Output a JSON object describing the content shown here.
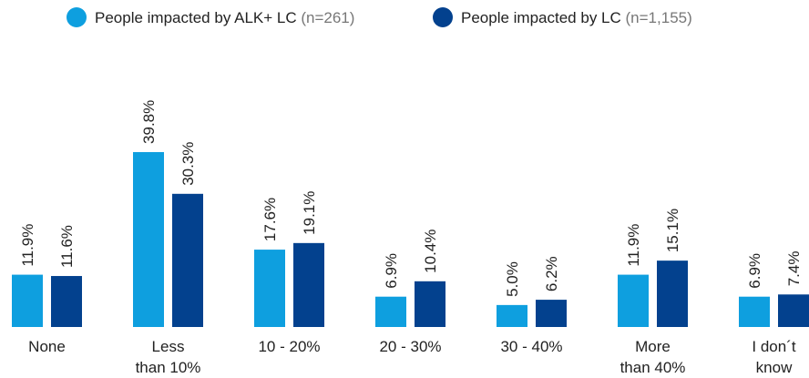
{
  "chart_data": {
    "type": "bar",
    "categories": [
      [
        "None"
      ],
      [
        "Less",
        "than 10%"
      ],
      [
        "10 - 20%"
      ],
      [
        "20 - 30%"
      ],
      [
        "30 - 40%"
      ],
      [
        "More",
        "than 40%"
      ],
      [
        "I don´t",
        "know"
      ]
    ],
    "series": [
      {
        "name": "People impacted by ALK+ LC",
        "note": "(n=261)",
        "color": "#0e9fdf",
        "values": [
          11.9,
          39.8,
          17.6,
          6.9,
          5.0,
          11.9,
          6.9
        ],
        "value_labels": [
          "11.9%",
          "39.8%",
          "17.6%",
          "6.9%",
          "5.0%",
          "11.9%",
          "6.9%"
        ]
      },
      {
        "name": "People impacted by LC",
        "note": "(n=1,155)",
        "color": "#03418e",
        "values": [
          11.6,
          30.3,
          19.1,
          10.4,
          6.2,
          15.1,
          7.4
        ],
        "value_labels": [
          "11.6%",
          "30.3%",
          "19.1%",
          "10.4%",
          "6.2%",
          "15.1%",
          "7.4%"
        ]
      }
    ],
    "ylim": [
      0,
      40
    ]
  }
}
